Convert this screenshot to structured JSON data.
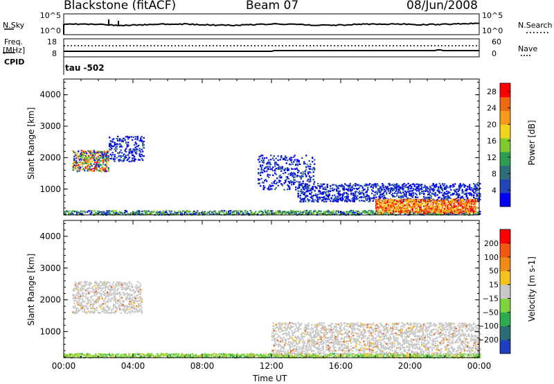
{
  "header": {
    "station": "Blackstone (fitACF)",
    "beam": "Beam 07",
    "date": "08/Jun/2008"
  },
  "noise_panel": {
    "left_label": "N.Sky",
    "right_label": "N.Search",
    "left_ticks": [
      "10^5",
      "10^0"
    ],
    "right_ticks": [
      "10^5",
      "10^0"
    ]
  },
  "freq_panel": {
    "left_label_1": "Freq.",
    "left_label_2": "[MHz]",
    "right_label": "Nave",
    "left_ticks": [
      "18",
      "8"
    ],
    "right_ticks": [
      "60",
      "0"
    ],
    "cpid_label": "CPID",
    "cpid_value": "tau -502"
  },
  "x_axis": {
    "label": "Time UT",
    "ticks": [
      "00:00",
      "04:00",
      "08:00",
      "12:00",
      "16:00",
      "20:00",
      "00:00"
    ]
  },
  "colors": {
    "power_scale": [
      "#0000ee",
      "#2244bb",
      "#2e6e7a",
      "#2d9e50",
      "#7ecb2e",
      "#f2d320",
      "#f59a1a",
      "#ee6a10",
      "#ff0000"
    ],
    "velocity_scale": [
      "#1f3fbe",
      "#2a6d78",
      "#2eab4c",
      "#7fd33a",
      "#c8c8c8",
      "#f5c020",
      "#f08a18",
      "#ef5a10",
      "#ff0000"
    ],
    "sky_noise_line": "#000000"
  },
  "chart_data": [
    {
      "type": "heatmap",
      "panel": "power",
      "ylabel": "Slant Range [km]",
      "ylim": [
        180,
        4500
      ],
      "yticks": [
        1000,
        2000,
        3000,
        4000
      ],
      "xlim_hours": [
        0,
        24
      ],
      "colorbar": {
        "label": "Power [dB]",
        "ticks": [
          4,
          8,
          12,
          16,
          20,
          24,
          28
        ],
        "range": [
          0,
          30
        ]
      },
      "regions": [
        {
          "t": [
            0.5,
            2.6
          ],
          "r": [
            1580,
            2250
          ],
          "level": "mixed-high"
        },
        {
          "t": [
            2.6,
            4.6
          ],
          "r": [
            1900,
            2700
          ],
          "level": "low"
        },
        {
          "t": [
            0.0,
            24.0
          ],
          "r": [
            200,
            340
          ],
          "level": "low-green"
        },
        {
          "t": [
            11.2,
            14.5
          ],
          "r": [
            1000,
            2100
          ],
          "level": "low"
        },
        {
          "t": [
            13.5,
            24.0
          ],
          "r": [
            620,
            1200
          ],
          "level": "low"
        },
        {
          "t": [
            18.0,
            23.8
          ],
          "r": [
            250,
            700
          ],
          "level": "high"
        }
      ]
    },
    {
      "type": "heatmap",
      "panel": "velocity",
      "ylabel": "Slant Range [km]",
      "ylim": [
        180,
        4500
      ],
      "yticks": [
        1000,
        2000,
        3000,
        4000
      ],
      "xlim_hours": [
        0,
        24
      ],
      "colorbar": {
        "label": "Velocity [m s-1]",
        "ticks": [
          200,
          100,
          50,
          15,
          -15,
          -50,
          -100,
          -200
        ],
        "range": [
          -250,
          250
        ]
      },
      "regions": [
        {
          "t": [
            0.5,
            4.5
          ],
          "r": [
            1600,
            2600
          ],
          "level": "ground-gray"
        },
        {
          "t": [
            0.0,
            24.0
          ],
          "r": [
            200,
            330
          ],
          "level": "green"
        },
        {
          "t": [
            12.0,
            24.0
          ],
          "r": [
            300,
            1300
          ],
          "level": "ground-gray"
        }
      ]
    }
  ]
}
